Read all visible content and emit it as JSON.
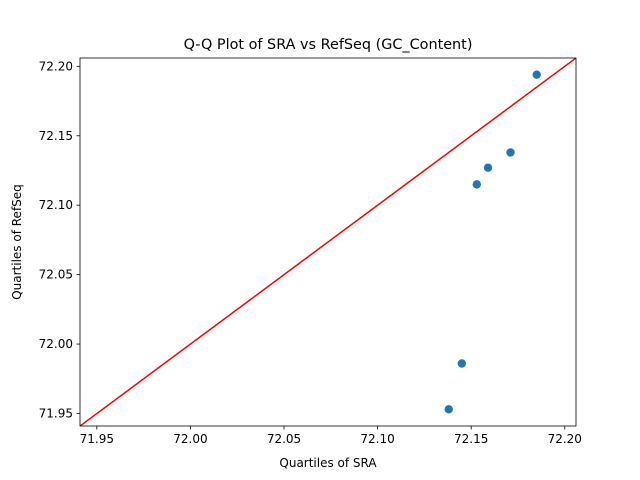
{
  "chart_data": {
    "type": "scatter",
    "title": "Q-Q Plot of SRA vs RefSeq (GC_Content)",
    "xlabel": "Quartiles of SRA",
    "ylabel": "Quartiles of RefSeq",
    "xlim": [
      71.941,
      72.206
    ],
    "ylim": [
      71.941,
      72.206
    ],
    "xticks": [
      "71.95",
      "72.00",
      "72.05",
      "72.10",
      "72.15",
      "72.20"
    ],
    "yticks": [
      "71.95",
      "72.00",
      "72.05",
      "72.10",
      "72.15",
      "72.20"
    ],
    "grid": false,
    "series": [
      {
        "type": "scatter",
        "color": "#1f77b4",
        "x": [
          72.138,
          72.145,
          72.153,
          72.159,
          72.171,
          72.185
        ],
        "y": [
          71.953,
          71.986,
          72.115,
          72.127,
          72.138,
          72.194
        ]
      }
    ],
    "reference_line": {
      "color": "#ff0000",
      "from": [
        71.941,
        71.941
      ],
      "to": [
        72.206,
        72.206
      ]
    }
  }
}
